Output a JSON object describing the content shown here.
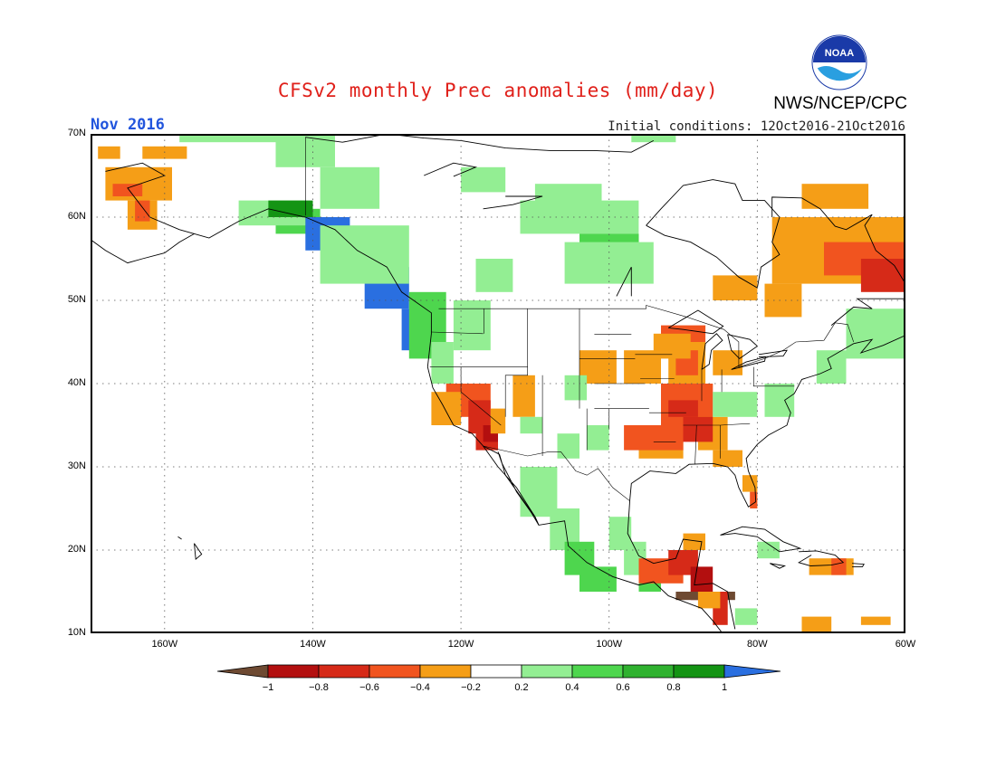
{
  "title": "CFSv2 monthly Prec anomalies (mm/day)",
  "period": "Nov 2016",
  "initial_conditions": "Initial conditions: 12Oct2016-21Oct2016",
  "agency": "NWS/NCEP/CPC",
  "logo_text": "NOAA",
  "map": {
    "lon_range": [
      -170,
      -60
    ],
    "lat_range": [
      10,
      70
    ],
    "lat_ticks": [
      {
        "label": "70N",
        "value": 70
      },
      {
        "label": "60N",
        "value": 60
      },
      {
        "label": "50N",
        "value": 50
      },
      {
        "label": "40N",
        "value": 40
      },
      {
        "label": "30N",
        "value": 30
      },
      {
        "label": "20N",
        "value": 20
      },
      {
        "label": "10N",
        "value": 10
      }
    ],
    "lon_ticks": [
      {
        "label": "160W",
        "value": -160
      },
      {
        "label": "140W",
        "value": -140
      },
      {
        "label": "120W",
        "value": -120
      },
      {
        "label": "100W",
        "value": -100
      },
      {
        "label": "80W",
        "value": -80
      },
      {
        "label": "60W",
        "value": -60
      }
    ],
    "grid": "dotted"
  },
  "colorbar": {
    "levels": [
      "-1",
      "-0.8",
      "-0.6",
      "-0.4",
      "-0.2",
      "0.2",
      "0.4",
      "0.6",
      "0.8",
      "1"
    ],
    "colors": [
      "#6e4a32",
      "#b30f0f",
      "#d62a18",
      "#f1541f",
      "#f59e17",
      "#ffffff",
      "#93ee93",
      "#4ed64e",
      "#2fb22f",
      "#149414",
      "#2a6fe0"
    ]
  },
  "colors": {
    "green_light": "#93ee93",
    "green_mid": "#4ed64e",
    "green_dark": "#149414",
    "blue": "#2a6fe0",
    "orange": "#f59e17",
    "red_orange": "#f1541f",
    "red": "#d62a18",
    "dark_red": "#b30f0f",
    "brown": "#6e4a32"
  }
}
